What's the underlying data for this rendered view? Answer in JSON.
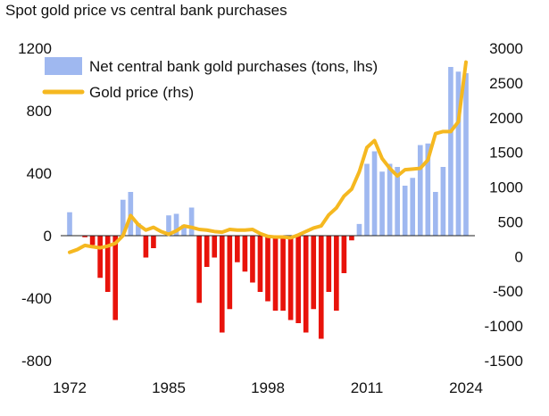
{
  "chart_data": {
    "type": "bar+line",
    "title": "Spot gold price vs central bank purchases",
    "x": [
      1972,
      1973,
      1974,
      1975,
      1976,
      1977,
      1978,
      1979,
      1980,
      1981,
      1982,
      1983,
      1984,
      1985,
      1986,
      1987,
      1988,
      1989,
      1990,
      1991,
      1992,
      1993,
      1994,
      1995,
      1996,
      1997,
      1998,
      1999,
      2000,
      2001,
      2002,
      2003,
      2004,
      2005,
      2006,
      2007,
      2008,
      2009,
      2010,
      2011,
      2012,
      2013,
      2014,
      2015,
      2016,
      2017,
      2018,
      2019,
      2020,
      2021,
      2022,
      2023,
      2024
    ],
    "x_ticks": [
      1972,
      1985,
      1998,
      2011,
      2024
    ],
    "left_axis": {
      "ylim": [
        -800,
        1200
      ],
      "ticks": [
        1200,
        800,
        400,
        0,
        -400,
        -800
      ]
    },
    "right_axis": {
      "ylim": [
        -1500,
        3000
      ],
      "ticks": [
        3000,
        2500,
        2000,
        1500,
        1000,
        500,
        0,
        -500,
        -1000,
        -1500
      ]
    },
    "series": [
      {
        "name": "Net central bank gold purchases (tons, lhs)",
        "type": "bar",
        "axis": "left",
        "positive_color": "#9fb8f0",
        "negative_color": "#e8130b",
        "values": [
          150,
          0,
          -10,
          -60,
          -270,
          -360,
          -540,
          230,
          280,
          80,
          -140,
          -80,
          0,
          130,
          140,
          70,
          180,
          -430,
          -200,
          -140,
          -620,
          -470,
          -170,
          -230,
          -300,
          -360,
          -420,
          -480,
          -480,
          -540,
          -560,
          -620,
          -470,
          -660,
          -360,
          -480,
          -240,
          -30,
          75,
          460,
          540,
          410,
          460,
          440,
          320,
          370,
          580,
          590,
          280,
          440,
          1080,
          1050,
          1040
        ]
      },
      {
        "name": "Gold price (rhs)",
        "type": "line",
        "axis": "right",
        "color": "#f5b820",
        "values": [
          60,
          100,
          160,
          140,
          125,
          150,
          190,
          300,
          590,
          460,
          380,
          420,
          360,
          320,
          370,
          440,
          420,
          390,
          380,
          360,
          350,
          390,
          380,
          380,
          390,
          330,
          290,
          280,
          280,
          270,
          310,
          360,
          410,
          440,
          600,
          700,
          870,
          970,
          1220,
          1570,
          1670,
          1410,
          1270,
          1160,
          1250,
          1260,
          1270,
          1390,
          1770,
          1800,
          1800,
          1940,
          2800
        ]
      }
    ],
    "legend": {
      "position": "top-left"
    }
  }
}
